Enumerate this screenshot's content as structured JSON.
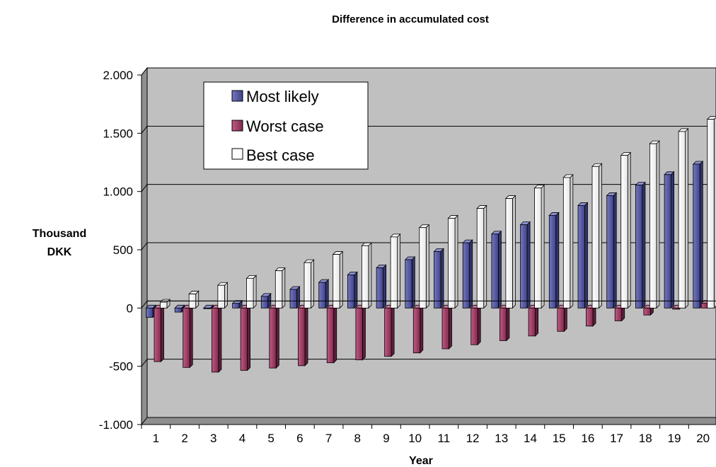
{
  "chart_data": {
    "type": "bar",
    "title": "Difference in accumulated cost",
    "xlabel": "Year",
    "ylabel": [
      "Thousand",
      "DKK"
    ],
    "categories": [
      "1",
      "2",
      "3",
      "4",
      "5",
      "6",
      "7",
      "8",
      "9",
      "10",
      "11",
      "12",
      "13",
      "14",
      "15",
      "16",
      "17",
      "18",
      "19",
      "20"
    ],
    "ylim": [
      -1000,
      2000
    ],
    "yticks": [
      2000,
      1500,
      1000,
      500,
      0,
      -500,
      -1000
    ],
    "ytick_labels": [
      "2.000",
      "1.500",
      "1.000",
      "500",
      "0",
      "-500",
      "-1.000"
    ],
    "grid": true,
    "legend_position": "top-left",
    "series": [
      {
        "name": "Most likely",
        "color": "#5b5ea6",
        "values": [
          -80,
          -35,
          -5,
          40,
          100,
          160,
          220,
          285,
          345,
          415,
          485,
          560,
          635,
          715,
          795,
          880,
          965,
          1055,
          1145,
          1235
        ]
      },
      {
        "name": "Worst case",
        "color": "#a8416b",
        "values": [
          -460,
          -510,
          -550,
          -535,
          -515,
          -495,
          -470,
          -445,
          -415,
          -385,
          -350,
          -315,
          -280,
          -240,
          -200,
          -155,
          -110,
          -60,
          -10,
          40
        ]
      },
      {
        "name": "Best case",
        "color": "#ffffff",
        "values": [
          50,
          120,
          195,
          255,
          320,
          390,
          460,
          535,
          610,
          690,
          770,
          855,
          940,
          1030,
          1120,
          1215,
          1310,
          1410,
          1515,
          1620
        ]
      }
    ]
  }
}
